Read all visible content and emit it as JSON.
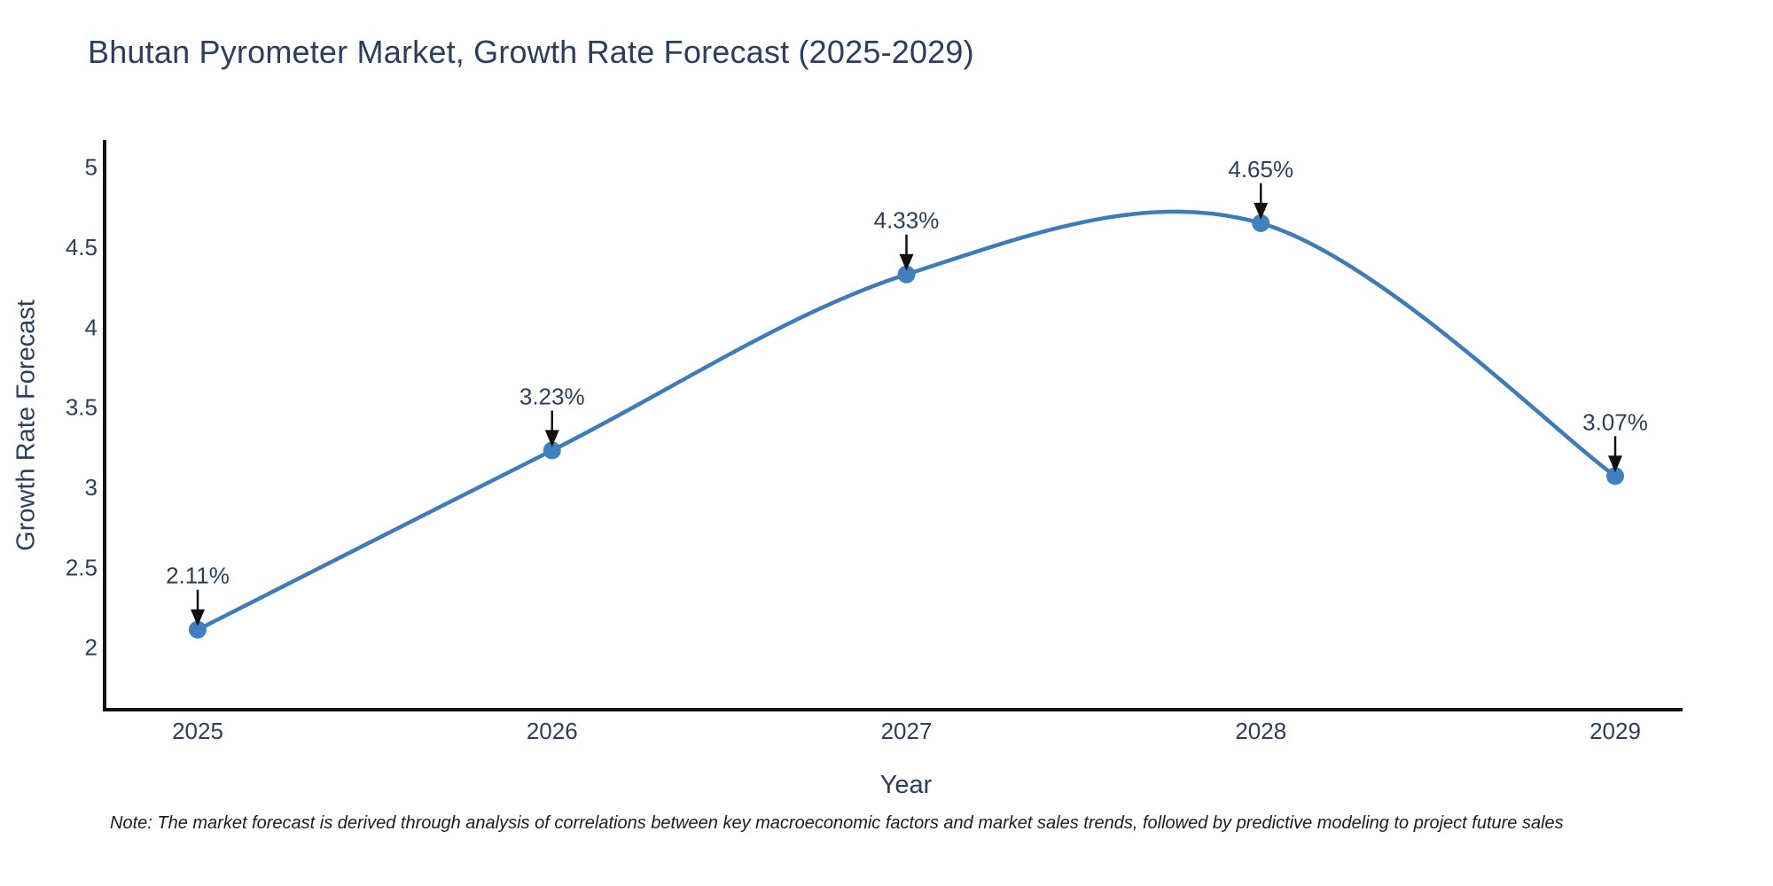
{
  "chart_data": {
    "type": "line",
    "line_shape": "spline",
    "title": "Bhutan Pyrometer Market, Growth Rate Forecast (2025-2029)",
    "xlabel": "Year",
    "ylabel": "Growth Rate Forecast",
    "categories": [
      "2025",
      "2026",
      "2027",
      "2028",
      "2029"
    ],
    "series": [
      {
        "name": "Growth Rate Forecast",
        "values": [
          2.11,
          3.23,
          4.33,
          4.65,
          3.07
        ]
      }
    ],
    "point_labels": [
      "2.11%",
      "3.23%",
      "4.33%",
      "4.65%",
      "3.07%"
    ],
    "yrange": [
      1.61,
      5.17
    ],
    "ytick_values": [
      2,
      2.5,
      3,
      3.5,
      4,
      4.5,
      5
    ],
    "ytick_labels": [
      "2",
      "2.5",
      "3",
      "3.5",
      "4",
      "4.5",
      "5"
    ],
    "grid": false,
    "legend": "none",
    "colors": {
      "line": "#3d7cba",
      "marker": "#3f80c0",
      "axis": "#111111",
      "tick_text": "#2a3f5f",
      "annotation_text": "#2a3f5f",
      "arrow": "#111111",
      "title_text": "#2a3f5f",
      "note_text": "#1c1c1c"
    }
  },
  "note": {
    "text": "Note: The market forecast is derived through analysis of correlations between key macroeconomic factors and market sales trends, followed by predictive modeling to project future sales"
  }
}
